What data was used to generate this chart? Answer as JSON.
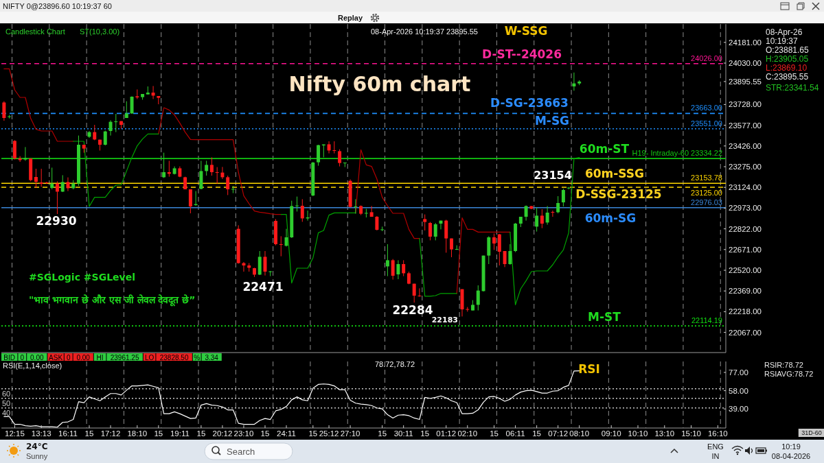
{
  "chart_data": [
    {
      "type": "candlestick",
      "title": "Nifty 60m chart",
      "categories": [
        null,
        null,
        null,
        null,
        null,
        null,
        null,
        null,
        null,
        null,
        null,
        null,
        null,
        null,
        null,
        null,
        null,
        null,
        null,
        null,
        null,
        null,
        null,
        null,
        null,
        null,
        null,
        null,
        null,
        null,
        null,
        null,
        null,
        null,
        null,
        null,
        null,
        null,
        null,
        null,
        null,
        null,
        null,
        null,
        null,
        null,
        null,
        null,
        null,
        null,
        null,
        null,
        null,
        null,
        null,
        null,
        null,
        null,
        null,
        null,
        null,
        null,
        null,
        null,
        null,
        null,
        null,
        null,
        null,
        null,
        null,
        null,
        null,
        null,
        null,
        null,
        null,
        null,
        null,
        null,
        null,
        null,
        null,
        null,
        null,
        null,
        null,
        null,
        null,
        null,
        null,
        null,
        null,
        null,
        null,
        null,
        null,
        null,
        null,
        null,
        null,
        null,
        null,
        null,
        null,
        null,
        null,
        null,
        null,
        null,
        null,
        null,
        null,
        null,
        null,
        null,
        null,
        null,
        null,
        null,
        null,
        null,
        null,
        null,
        null,
        null,
        null,
        null,
        null,
        null,
        null,
        null,
        null,
        null,
        null,
        null
      ],
      "ohlc": [
        [
          23743,
          23752,
          23610,
          23630
        ],
        [
          23638,
          23652,
          23627,
          23642
        ],
        [
          23463,
          23468,
          23327,
          23335
        ],
        [
          23335,
          23352,
          23310,
          23323
        ],
        [
          23327,
          23418,
          23318,
          23338
        ],
        [
          23335,
          23335,
          23168,
          23177
        ],
        [
          23200,
          23260,
          23120,
          23165
        ],
        [
          23160,
          23260,
          23127,
          23150
        ],
        [
          23160,
          23165,
          23150,
          23155
        ],
        [
          23120,
          23268,
          23110,
          23152
        ],
        [
          23152,
          23168,
          22930,
          23093
        ],
        [
          23093,
          23213,
          23090,
          23163
        ],
        [
          23163,
          23197,
          23097,
          23118
        ],
        [
          23118,
          23177,
          23110,
          23152
        ],
        [
          23152,
          23502,
          23135,
          23435
        ],
        [
          23435,
          23435,
          23377,
          23407
        ],
        [
          23493,
          23535,
          23485,
          23527
        ],
        [
          23527,
          23580,
          23468,
          23473
        ],
        [
          23472,
          23472,
          23393,
          23435
        ],
        [
          23435,
          23538,
          23430,
          23532
        ],
        [
          23535,
          23613,
          23502,
          23602
        ],
        [
          23600,
          23660,
          23527,
          23605
        ],
        [
          23607,
          23607,
          23552,
          23580
        ],
        [
          23630,
          23752,
          23630,
          23663
        ],
        [
          23663,
          23788,
          23660,
          23785
        ],
        [
          23788,
          23838,
          23768,
          23780
        ],
        [
          23782,
          23805,
          23763,
          23805
        ],
        [
          23802,
          23860,
          23802,
          23815
        ],
        [
          23815,
          23863,
          23768,
          23793
        ],
        [
          23790,
          23790,
          23730,
          23777
        ],
        [
          23198,
          23377,
          23193,
          23235
        ],
        [
          23235,
          23318,
          23202,
          23223
        ],
        [
          23222,
          23277,
          23218,
          23263
        ],
        [
          23263,
          23277,
          23198,
          23202
        ],
        [
          23198,
          23202,
          23110,
          23110
        ],
        [
          23110,
          23110,
          22935,
          22985
        ],
        [
          22995,
          23097,
          22990,
          23002
        ],
        [
          23113,
          23318,
          23110,
          23243
        ],
        [
          23243,
          23318,
          23210,
          23288
        ],
        [
          23288,
          23343,
          23210,
          23235
        ],
        [
          23235,
          23272,
          23152,
          23232
        ],
        [
          23232,
          23273,
          23185,
          23198
        ],
        [
          23198,
          23210,
          23068,
          23110
        ],
        [
          23108,
          23135,
          23082,
          23113
        ],
        [
          22822,
          22848,
          22568,
          22572
        ],
        [
          22572,
          22580,
          22510,
          22555
        ],
        [
          22555,
          22572,
          22510,
          22538
        ],
        [
          22535,
          22538,
          22471,
          22488
        ],
        [
          22488,
          22660,
          22485,
          22618
        ],
        [
          22618,
          22660,
          22482,
          22510
        ],
        [
          22508,
          22515,
          22477,
          22512
        ],
        [
          22880,
          22893,
          22702,
          22710
        ],
        [
          22710,
          22768,
          22622,
          22707
        ],
        [
          22698,
          22822,
          22693,
          22760
        ],
        [
          22760,
          23027,
          22755,
          22988
        ],
        [
          22990,
          23057,
          22948,
          22992
        ],
        [
          22990,
          23038,
          22873,
          22898
        ],
        [
          22898,
          22955,
          22882,
          22905
        ],
        [
          23065,
          23310,
          23060,
          23305
        ],
        [
          23307,
          23435,
          23282,
          23432
        ],
        [
          23430,
          23438,
          23343,
          23437
        ],
        [
          23438,
          23460,
          23372,
          23393
        ],
        [
          23395,
          23460,
          23372,
          23390
        ],
        [
          23388,
          23402,
          23277,
          23302
        ],
        [
          23300,
          23305,
          23272,
          23305
        ],
        [
          23172,
          23182,
          22977,
          22982
        ],
        [
          22982,
          23038,
          22932,
          22985
        ],
        [
          22988,
          22993,
          22922,
          22932
        ],
        [
          22935,
          22968,
          22905,
          22938
        ],
        [
          22943,
          22988,
          22910,
          22910
        ],
        [
          22910,
          22915,
          22810,
          22815
        ],
        [
          22815,
          22838,
          22805,
          22818
        ],
        [
          22548,
          22710,
          22477,
          22593
        ],
        [
          22593,
          22602,
          22452,
          22480
        ],
        [
          22490,
          22593,
          22455,
          22565
        ],
        [
          22565,
          22593,
          22477,
          22498
        ],
        [
          22498,
          22510,
          22418,
          22422
        ],
        [
          22422,
          22422,
          22284,
          22335
        ],
        [
          22335,
          22388,
          22327,
          22332
        ],
        [
          22893,
          22927,
          22810,
          22872
        ],
        [
          22865,
          22872,
          22738,
          22765
        ],
        [
          22765,
          22865,
          22738,
          22855
        ],
        [
          22860,
          22882,
          22818,
          22882
        ],
        [
          22882,
          22888,
          22648,
          22752
        ],
        [
          22752,
          22752,
          22615,
          22672
        ],
        [
          22670,
          22702,
          22668,
          22675
        ],
        [
          22382,
          22382,
          22183,
          22235
        ],
        [
          22237,
          22252,
          22218,
          22233
        ],
        [
          22227,
          22302,
          22227,
          22268
        ],
        [
          22268,
          22410,
          22227,
          22372
        ],
        [
          22368,
          22627,
          22365,
          22627
        ],
        [
          22627,
          22768,
          22565,
          22760
        ],
        [
          22760,
          22788,
          22668,
          22715
        ],
        [
          22782,
          22785,
          22555,
          22655
        ],
        [
          22660,
          22660,
          22543,
          22565
        ],
        [
          22565,
          22710,
          22560,
          22660
        ],
        [
          22660,
          22865,
          22652,
          22860
        ],
        [
          22860,
          22910,
          22835,
          22910
        ],
        [
          22910,
          22993,
          22882,
          22988
        ],
        [
          22988,
          22988,
          22965,
          22968
        ],
        [
          22838,
          22977,
          22802,
          22918
        ],
        [
          22918,
          22965,
          22827,
          22860
        ],
        [
          22868,
          22988,
          22852,
          22940
        ],
        [
          22945,
          22955,
          22910,
          22942
        ],
        [
          22943,
          23060,
          22935,
          23010
        ],
        [
          23015,
          23115,
          22985,
          23105
        ],
        [
          23120,
          23127,
          23110,
          23122
        ],
        [
          23860,
          23961.25,
          23828.5,
          23882
        ],
        [
          23881.65,
          23905.05,
          23869.1,
          23895.55
        ],
        null,
        null,
        null,
        null,
        null,
        null,
        null,
        null,
        null,
        null,
        null,
        null,
        null,
        null,
        null,
        null,
        null,
        null,
        null,
        null,
        null,
        null,
        null,
        null,
        null,
        null,
        null
      ],
      "colors": [
        "#ff1a1a",
        "#2ecc2e",
        "#ff1a1a",
        "#ff1a1a",
        "#2ecc2e",
        "#ff1a1a",
        "#ff1a1a",
        "#ff1a1a",
        "#ff1a1a",
        "#2ecc2e",
        "#ff1a1a",
        "#2ecc2e",
        "#ff1a1a",
        "#2ecc2e",
        "#2ecc2e",
        "#ff1a1a",
        "#2ecc2e",
        "#ff1a1a",
        "#ff1a1a",
        "#2ecc2e",
        "#2ecc2e",
        "#2ecc2e",
        "#ff1a1a",
        "#2ecc2e",
        "#2ecc2e",
        "#ff1a1a",
        "#2ecc2e",
        "#2ecc2e",
        "#ff1a1a",
        "#ff1a1a",
        "#2ecc2e",
        "#ff1a1a",
        "#2ecc2e",
        "#ff1a1a",
        "#ff1a1a",
        "#ff1a1a",
        "#2ecc2e",
        "#2ecc2e",
        "#2ecc2e",
        "#ff1a1a",
        "#ff1a1a",
        "#ff1a1a",
        "#ff1a1a",
        "#2ecc2e",
        "#ff1a1a",
        "#ff1a1a",
        "#ff1a1a",
        "#ff1a1a",
        "#2ecc2e",
        "#ff1a1a",
        "#2ecc2e",
        "#ff1a1a",
        "#ff1a1a",
        "#2ecc2e",
        "#2ecc2e",
        "#2ecc2e",
        "#ff1a1a",
        "#2ecc2e",
        "#2ecc2e",
        "#2ecc2e",
        "#2ecc2e",
        "#ff1a1a",
        "#ff1a1a",
        "#ff1a1a",
        "#2ecc2e",
        "#ff1a1a",
        "#2ecc2e",
        "#ff1a1a",
        "#2ecc2e",
        "#ff1a1a",
        "#ff1a1a",
        "#2ecc2e",
        "#2ecc2e",
        "#ff1a1a",
        "#2ecc2e",
        "#ff1a1a",
        "#ff1a1a",
        "#ff1a1a",
        "#ff1a1a",
        "#ff1a1a",
        "#ff1a1a",
        "#2ecc2e",
        "#2ecc2e",
        "#ff1a1a",
        "#ff1a1a",
        "#2ecc2e",
        "#ff1a1a",
        "#ff1a1a",
        "#2ecc2e",
        "#2ecc2e",
        "#2ecc2e",
        "#2ecc2e",
        "#ff1a1a",
        "#ff1a1a",
        "#ff1a1a",
        "#2ecc2e",
        "#2ecc2e",
        "#2ecc2e",
        "#2ecc2e",
        "#ff1a1a",
        "#2ecc2e",
        "#ff1a1a",
        "#2ecc2e",
        "#ff1a1a",
        "#2ecc2e",
        "#2ecc2e",
        "#2ecc2e",
        "#2ecc2e",
        "#2ecc2e",
        null,
        null,
        null,
        null,
        null,
        null,
        null,
        null,
        null,
        null,
        null,
        null,
        null,
        null,
        null,
        null,
        null,
        null,
        null,
        null,
        null,
        null,
        null,
        null,
        null,
        null,
        null
      ],
      "series": [
        {
          "type": "line",
          "color": "#b30000",
          "values": [
            23988,
            23988,
            23835,
            23780,
            23780,
            23627,
            23548,
            23535,
            23535,
            23535,
            23460,
            23460,
            23460,
            23460,
            null,
            null,
            null,
            null,
            null,
            null,
            null,
            null,
            null,
            null,
            null,
            null,
            null,
            null,
            null,
            23513,
            23705,
            23688,
            23652,
            23593,
            23527,
            23473,
            23472,
            23472,
            23472,
            23472,
            23472,
            23472,
            23472,
            23472,
            23235,
            23063,
            23005,
            22952,
            22943,
            22938,
            22932,
            22927,
            22927,
            null,
            null,
            null,
            null,
            null,
            null,
            null,
            null,
            null,
            null,
            null,
            null,
            null,
            22938,
            23398,
            23288,
            23277,
            23185,
            23052,
            22990,
            22935,
            22935,
            22935,
            22818,
            22752,
            22752,
            null,
            null,
            null,
            null,
            null,
            null,
            22351,
            22902,
            22818,
            22818,
            22798,
            22798,
            22798,
            22798,
            22798,
            22798,
            22798,
            null,
            null,
            null,
            null,
            null,
            null,
            null,
            null,
            null,
            null,
            null,
            null,
            null,
            null,
            null,
            null,
            null,
            null,
            null,
            null,
            null,
            null,
            null,
            null,
            null,
            null,
            null,
            null,
            null,
            null,
            null,
            null,
            null,
            null,
            null,
            null,
            null,
            null,
            null,
            null
          ]
        },
        {
          "type": "line",
          "color": "#00a300",
          "values": [
            null,
            null,
            null,
            null,
            null,
            null,
            null,
            null,
            null,
            null,
            null,
            null,
            null,
            23460,
            23460,
            23460,
            22985,
            23052,
            23052,
            23052,
            23102,
            23140,
            23143,
            23243,
            23343,
            23427,
            23477,
            23513,
            23513,
            23513,
            null,
            null,
            null,
            null,
            null,
            null,
            null,
            null,
            null,
            null,
            null,
            null,
            null,
            null,
            null,
            null,
            null,
            null,
            null,
            null,
            null,
            null,
            22927,
            22927,
            22427,
            22535,
            22535,
            22535,
            22610,
            22793,
            22810,
            22922,
            22938,
            22938,
            22938,
            22938,
            22938,
            null,
            null,
            null,
            null,
            null,
            null,
            null,
            null,
            null,
            null,
            null,
            22752,
            22331,
            22331,
            22335,
            22351,
            22351,
            22351,
            22351,
            null,
            null,
            null,
            null,
            null,
            null,
            null,
            null,
            null,
            22798,
            22268,
            22385,
            22443,
            22510,
            22515,
            22515,
            22515,
            22560,
            22618,
            22668,
            22793,
            23335,
            23342,
            null,
            null,
            null,
            null,
            null,
            null,
            null,
            null,
            null,
            null,
            null,
            null,
            null,
            null,
            null,
            null,
            null,
            null,
            null,
            null,
            null,
            null,
            null,
            null,
            null,
            null,
            null
          ]
        }
      ],
      "ylim": [
        21920,
        24315
      ],
      "yticks": [
        {
          "value": 24181,
          "label": "24181.00"
        },
        {
          "value": 24030,
          "label": "24030.00"
        },
        {
          "value": 23895.55,
          "label": "23895.55"
        },
        {
          "value": 23728,
          "label": "23728.00"
        },
        {
          "value": 23577,
          "label": "23577.00"
        },
        {
          "value": 23426,
          "label": "23426.00"
        },
        {
          "value": 23275,
          "label": "23275.00"
        },
        {
          "value": 23124,
          "label": "23124.00"
        },
        {
          "value": 22973,
          "label": "22973.00"
        },
        {
          "value": 22822,
          "label": "22822.00"
        },
        {
          "value": 22671,
          "label": "22671.00"
        },
        {
          "value": 22520,
          "label": "22520.00"
        },
        {
          "value": 22369,
          "label": "22369.00"
        },
        {
          "value": 22218,
          "label": "22218.00"
        },
        {
          "value": 22067,
          "label": "22067.00"
        }
      ],
      "ref_lines": [
        {
          "axis": "y",
          "value": 24026,
          "label": "24026.00",
          "color": "#ff1493",
          "line_style": "dashed"
        },
        {
          "axis": "y",
          "value": 23663,
          "label": "23663.00",
          "color": "#1e90ff",
          "line_style": "dashed"
        },
        {
          "axis": "y",
          "value": 23551,
          "label": "23551.00",
          "color": "#1e90ff",
          "line_style": "dotted"
        },
        {
          "axis": "y",
          "value": 23334.22,
          "label": "H19- Intraday-60 23334.22",
          "color": "#11c811",
          "line_style": "solid"
        },
        {
          "axis": "y",
          "value": 23153.78,
          "label": "23153.78",
          "color": "#ffd700",
          "line_style": "solid"
        },
        {
          "axis": "y",
          "value": 23125,
          "label": "23125.00",
          "color": "#ffd700",
          "line_style": "dashed"
        },
        {
          "axis": "y",
          "value": 22976.03,
          "label": "22976.03",
          "color": "#3a86d8",
          "line_style": "solid"
        },
        {
          "axis": "y",
          "value": 22114.19,
          "label": "22114.19",
          "color": "#11dd11",
          "line_style": "dotted"
        }
      ],
      "annotations": [
        "Candlestick Chart",
        "ST(10,3.00)",
        "08-Apr-2026 10:19:37 23895.55",
        "W-SSG",
        {
          "text": "D-ST--24026",
          "y": 24026
        },
        {
          "text": "D-SG-23663",
          "y": 23663
        },
        {
          "text": "M-SG",
          "y": 23551
        },
        {
          "text": "60m-ST",
          "y": 23334.22
        },
        {
          "text": "23154",
          "y": 23154
        },
        {
          "text": "60m-SSG",
          "y": 23153.78
        },
        {
          "text": "D-SSG-23125",
          "y": 23125
        },
        {
          "text": "60m-SG",
          "y": 22976.03
        },
        {
          "text": "M-ST",
          "y": 22114.19
        },
        {
          "text": "22930",
          "y": 22930
        },
        {
          "text": "22471",
          "y": 22471
        },
        {
          "text": "22284",
          "y": 22284
        },
        "22183",
        "#SGLogic #SGLevel",
        "\"भाव भगवान छे और एस जी लेवल देवदूत छे”",
        "08-Apr-26",
        "10:19:37",
        "O:23881.65",
        "H:23905.05",
        "L:23869.10",
        "C:23895.55",
        "STR:23341.54"
      ]
    },
    {
      "type": "line",
      "title": "RSI(E,1,14,close)",
      "categories": [
        null,
        null,
        "12:15",
        null,
        null,
        null,
        null,
        "13:13",
        null,
        null,
        null,
        null,
        "16:11",
        null,
        null,
        null,
        "15",
        null,
        null,
        null,
        "17:12",
        null,
        null,
        null,
        null,
        "18:10",
        null,
        null,
        null,
        "15",
        null,
        null,
        null,
        "19:11",
        null,
        null,
        null,
        "15",
        null,
        null,
        null,
        "20:12",
        null,
        null,
        null,
        "23:10",
        null,
        null,
        null,
        "15",
        null,
        null,
        null,
        "24:11",
        null,
        null,
        null,
        null,
        "15",
        null,
        null,
        "25:12",
        null,
        null,
        null,
        "27:10",
        null,
        null,
        null,
        null,
        null,
        "15",
        null,
        null,
        null,
        "30:11",
        null,
        null,
        null,
        "15",
        null,
        null,
        null,
        "01:12",
        null,
        null,
        null,
        "02:10",
        null,
        null,
        null,
        null,
        "15",
        null,
        null,
        null,
        "06:11",
        null,
        null,
        null,
        "15",
        null,
        null,
        null,
        "07:12",
        null,
        null,
        null,
        "08:10",
        null,
        null,
        null,
        null,
        null,
        "09:10",
        null,
        null,
        null,
        null,
        "10:10",
        null,
        null,
        null,
        null,
        "13:10",
        null,
        null,
        null,
        null,
        "15:10",
        null,
        null,
        null,
        null,
        "16:10",
        null
      ],
      "series": [
        {
          "color": "#ffffff",
          "values": [
            31,
            31,
            23,
            23,
            21.5,
            21,
            21.5,
            20.5,
            20.5,
            20.5,
            20,
            25,
            25.5,
            28,
            46.5,
            45.5,
            51.5,
            49.5,
            47.5,
            51.5,
            55,
            55,
            53.5,
            58.5,
            63,
            63,
            63.5,
            64,
            62.5,
            61,
            34,
            34,
            36,
            34,
            31.5,
            29,
            29.5,
            43,
            44.5,
            43,
            42.5,
            41,
            38,
            38,
            24,
            23,
            23,
            23,
            27,
            29,
            28,
            37,
            38.5,
            41.5,
            48.5,
            51.5,
            48.5,
            47.5,
            60.5,
            64.5,
            65,
            64.5,
            63,
            59,
            59,
            48,
            45,
            44,
            43.5,
            42.5,
            40,
            39,
            33,
            29.5,
            32.5,
            33,
            32,
            29.5,
            28,
            51,
            50,
            51,
            52.5,
            50.5,
            47.5,
            45.5,
            34,
            34,
            34.5,
            38,
            46,
            51.5,
            52,
            50,
            47,
            49,
            53.5,
            56.5,
            58,
            58.5,
            57,
            55.5,
            55.5,
            57.5,
            58,
            61.5,
            63.5,
            78.5,
            78.7,
            null,
            null,
            null,
            null,
            null,
            null,
            null,
            null,
            null,
            null,
            null,
            null,
            null,
            null,
            null,
            null,
            null,
            null,
            null,
            null,
            null,
            null,
            null,
            null,
            null,
            null,
            null
          ]
        }
      ],
      "ylim": [
        19.1,
        88.4
      ],
      "yticks": [
        {
          "value": 77,
          "label": "77.00"
        },
        {
          "value": 58,
          "label": "58.00"
        },
        {
          "value": 39,
          "label": "39.00"
        }
      ],
      "ref_lines": [
        {
          "axis": "y",
          "value": 60,
          "label": "60",
          "color": "#c8c8c8",
          "line_style": "dotted"
        },
        {
          "axis": "y",
          "value": 50,
          "label": "50",
          "color": "#c8c8c8",
          "line_style": "dotted"
        },
        {
          "axis": "y",
          "value": 40,
          "label": "40",
          "color": "#c8c8c8",
          "line_style": "dotted"
        }
      ],
      "annotations": [
        "BID",
        "0",
        "0.00",
        "ASK",
        "0",
        "0.00",
        "HI",
        "23961.25",
        "LO",
        "23828.50",
        "%",
        "3.34",
        "78.72,78.72",
        "RSI",
        "RSIR:78.72",
        "RSIAVG:78.72"
      ]
    },
    {
      "type": "other",
      "annotations": [
        "NIFTY 0@23896.60 10:19:37 60",
        "Replay",
        "31D-60",
        "24°C",
        "Sunny",
        "Search",
        "ENG",
        "IN",
        "10:19",
        "08-04-2026"
      ]
    }
  ]
}
